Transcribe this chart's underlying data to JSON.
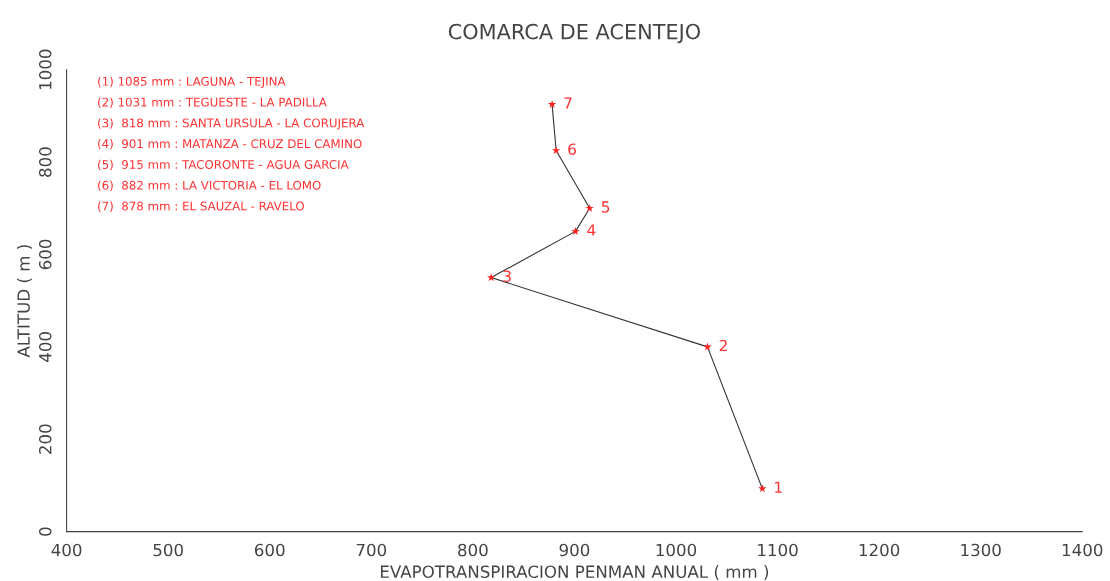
{
  "chart_data": {
    "type": "line",
    "title": "COMARCA DE ACENTEJO",
    "xlabel": "EVAPOTRANSPIRACION PENMAN ANUAL ( mm )",
    "ylabel": "ALTITUD ( m )",
    "series": [
      {
        "x": [
          1085,
          1031,
          818,
          901,
          915,
          882,
          878
        ],
        "values": [
          93,
          400,
          550,
          650,
          700,
          825,
          925
        ],
        "color": "#333333",
        "colors": [
          "#ff2020",
          "#ff2020",
          "#ff2020",
          "#ff2020",
          "#ff2020",
          "#ff2020",
          "#ff2020"
        ]
      }
    ],
    "marker": "star",
    "line_style": "solid",
    "grid": false,
    "legend": false,
    "xlim": [
      400,
      1400
    ],
    "xticks": [
      400,
      500,
      600,
      700,
      800,
      900,
      1000,
      1100,
      1200,
      1300,
      1400
    ],
    "ylim": [
      0,
      1000
    ],
    "yticks": [
      0,
      200,
      400,
      600,
      800,
      1000
    ],
    "annotations": [
      "(1) 1085 mm : LAGUNA - TEJINA",
      "(2) 1031 mm : TEGUESTE - LA PADILLA",
      "(3)  818 mm : SANTA URSULA - LA CORUJERA",
      "(4)  901 mm : MATANZA - CRUZ DEL CAMINO",
      "(5)  915 mm : TACORONTE - AGUA GARCIA",
      "(6)  882 mm : LA VICTORIA - EL LOMO",
      "(7)  878 mm : EL SAUZAL - RAVELO",
      {
        "text": "1",
        "x": 1085,
        "y": 93
      },
      {
        "text": "2",
        "x": 1031,
        "y": 400
      },
      {
        "text": "3",
        "x": 818,
        "y": 550
      },
      {
        "text": "4",
        "x": 901,
        "y": 650
      },
      {
        "text": "5",
        "x": 915,
        "y": 700
      },
      {
        "text": "6",
        "x": 882,
        "y": 825
      },
      {
        "text": "7",
        "x": 878,
        "y": 925
      }
    ]
  }
}
